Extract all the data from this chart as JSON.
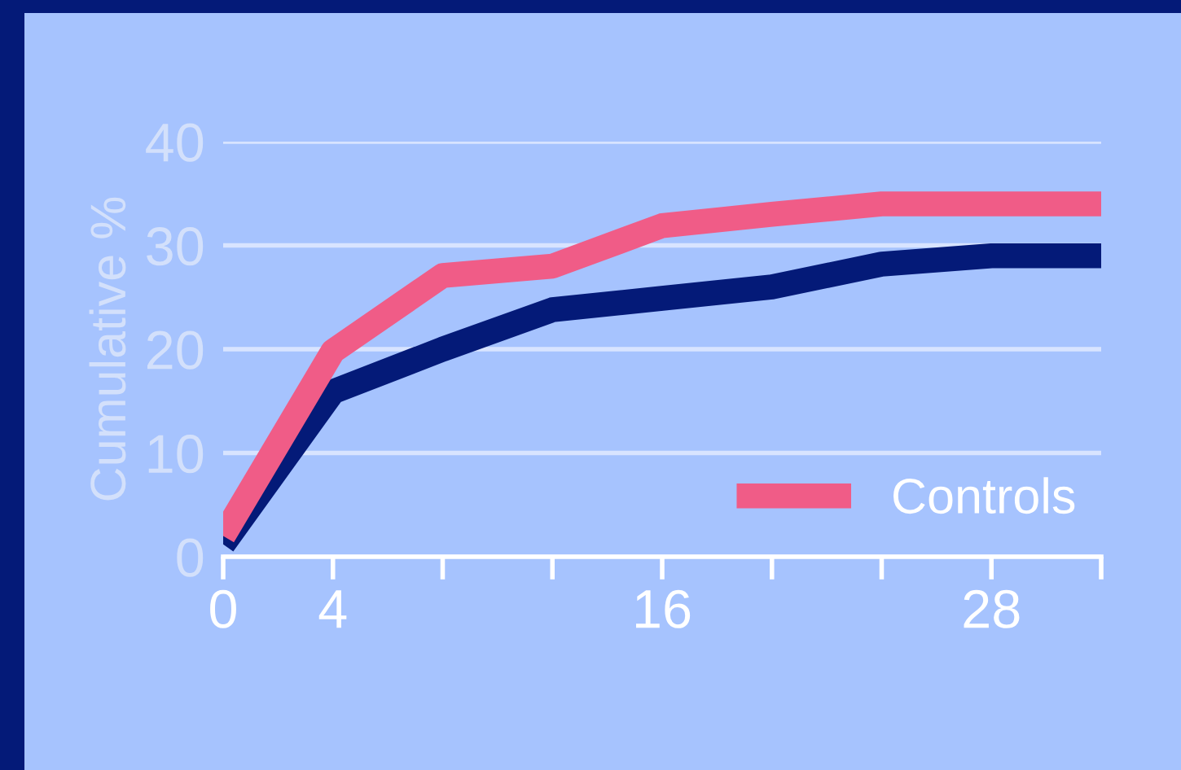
{
  "chart_data": {
    "type": "line",
    "ylabel": "Cumulative %",
    "x": [
      0,
      4,
      8,
      12,
      16,
      20,
      24,
      28,
      32
    ],
    "series": [
      {
        "color": "#041a78",
        "values": [
          1.2,
          15.9,
          20,
          23.8,
          24.9,
          26,
          28.2,
          29,
          29
        ]
      },
      {
        "name": "Controls",
        "color": "#f05c87",
        "values": [
          2,
          19.8,
          27.1,
          28,
          31.9,
          33,
          34,
          34,
          34
        ]
      }
    ],
    "xlim": [
      0,
      32
    ],
    "xticks": [
      0,
      4,
      {
        "value": 8,
        "label": null
      },
      {
        "value": 12,
        "label": null
      },
      16,
      {
        "value": 20,
        "label": null
      },
      {
        "value": 24,
        "label": null
      },
      28,
      {
        "value": 32,
        "label": null
      }
    ],
    "ylim": [
      0,
      40
    ],
    "yticks": [
      0,
      10,
      20,
      30,
      40
    ],
    "grid": "y",
    "legend": "bottom right",
    "marker": "none",
    "line_style": "solid"
  }
}
